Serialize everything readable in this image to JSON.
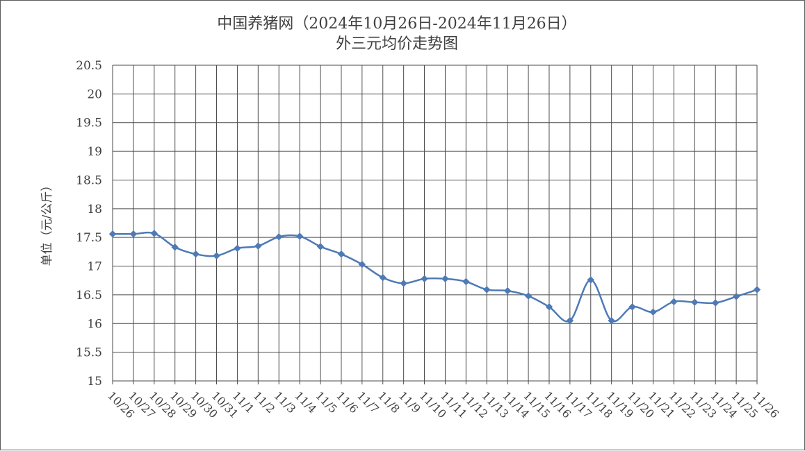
{
  "chart_data": {
    "type": "line",
    "title": "中国养猪网（2024年10月26日-2024年11月26日）",
    "subtitle": "外三元均价走势图",
    "xlabel": "",
    "ylabel": "单位（元/公斤）",
    "ylim": [
      15,
      20.5
    ],
    "yticks": [
      "15",
      "15.5",
      "16",
      "16.5",
      "17",
      "17.5",
      "18",
      "18.5",
      "19",
      "19.5",
      "20",
      "20.5"
    ],
    "grid": true,
    "legend": "none",
    "categories": [
      "10/26",
      "10/27",
      "10/28",
      "10/29",
      "10/30",
      "10/31",
      "11/1",
      "11/2",
      "11/3",
      "11/4",
      "11/5",
      "11/6",
      "11/7",
      "11/8",
      "11/9",
      "11/10",
      "11/11",
      "11/12",
      "11/13",
      "11/14",
      "11/15",
      "11/16",
      "11/17",
      "11/18",
      "11/19",
      "11/20",
      "11/21",
      "11/22",
      "11/23",
      "11/24",
      "11/25",
      "11/26"
    ],
    "series": [
      {
        "values": [
          17.56,
          17.56,
          17.57,
          17.33,
          17.21,
          17.18,
          17.31,
          17.35,
          17.51,
          17.52,
          17.34,
          17.21,
          17.03,
          16.8,
          16.7,
          16.78,
          16.78,
          16.73,
          16.59,
          16.57,
          16.48,
          16.29,
          16.05,
          16.76,
          16.05,
          16.29,
          16.2,
          16.38,
          16.37,
          16.36,
          16.47,
          16.59
        ],
        "color": "#4e7ab5"
      }
    ]
  }
}
